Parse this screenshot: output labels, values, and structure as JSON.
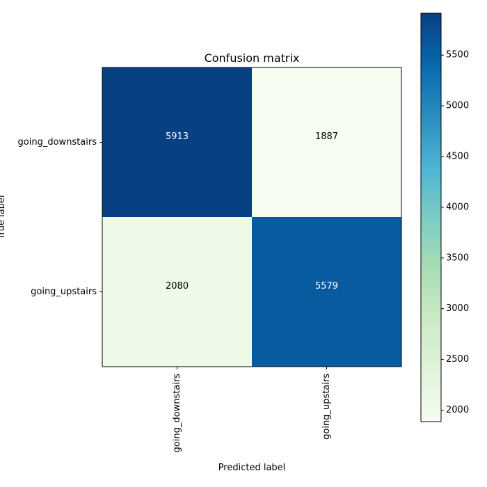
{
  "chart_data": {
    "type": "heatmap",
    "title": "Confusion matrix",
    "xlabel": "Predicted label",
    "ylabel": "True label",
    "row_labels": [
      "going_downstairs",
      "going_upstairs"
    ],
    "col_labels": [
      "going_downstairs",
      "going_upstairs"
    ],
    "values": [
      [
        5913,
        1887
      ],
      [
        2080,
        5579
      ]
    ],
    "colormap": "GnBu",
    "colorbar": {
      "range": [
        1887,
        5913
      ],
      "ticks": [
        2000,
        2500,
        3000,
        3500,
        4000,
        4500,
        5000,
        5500
      ]
    }
  }
}
